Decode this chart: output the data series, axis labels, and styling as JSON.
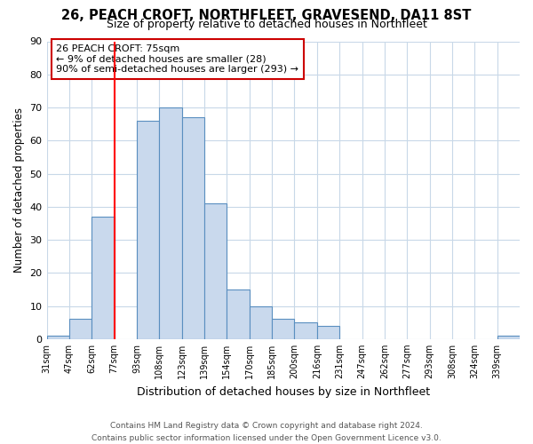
{
  "title": "26, PEACH CROFT, NORTHFLEET, GRAVESEND, DA11 8ST",
  "subtitle": "Size of property relative to detached houses in Northfleet",
  "xlabel": "Distribution of detached houses by size in Northfleet",
  "ylabel": "Number of detached properties",
  "bin_labels": [
    "31sqm",
    "47sqm",
    "62sqm",
    "77sqm",
    "93sqm",
    "108sqm",
    "123sqm",
    "139sqm",
    "154sqm",
    "170sqm",
    "185sqm",
    "200sqm",
    "216sqm",
    "231sqm",
    "247sqm",
    "262sqm",
    "277sqm",
    "293sqm",
    "308sqm",
    "324sqm",
    "339sqm"
  ],
  "bar_heights": [
    1,
    6,
    37,
    0,
    66,
    70,
    67,
    41,
    15,
    10,
    6,
    5,
    4,
    0,
    0,
    0,
    0,
    0,
    0,
    0,
    1
  ],
  "bar_color": "#c9d9ed",
  "bar_edge_color": "#5a8fc0",
  "red_line_index": 3,
  "ylim": [
    0,
    90
  ],
  "yticks": [
    0,
    10,
    20,
    30,
    40,
    50,
    60,
    70,
    80,
    90
  ],
  "annotation_title": "26 PEACH CROFT: 75sqm",
  "annotation_line1": "← 9% of detached houses are smaller (28)",
  "annotation_line2": "90% of semi-detached houses are larger (293) →",
  "annotation_box_color": "#ffffff",
  "annotation_box_edge": "#cc0000",
  "footer1": "Contains HM Land Registry data © Crown copyright and database right 2024.",
  "footer2": "Contains public sector information licensed under the Open Government Licence v3.0.",
  "bg_color": "#ffffff",
  "grid_color": "#c8d8e8"
}
